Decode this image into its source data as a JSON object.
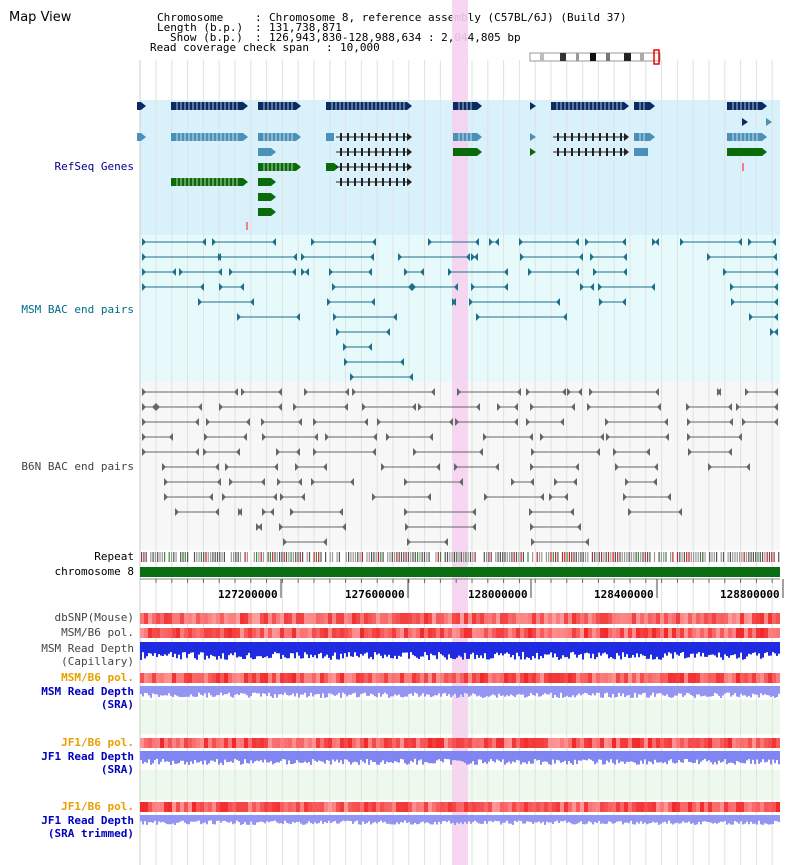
{
  "header": {
    "view_title": "Map View",
    "chromosome_label": "Chromosome",
    "chromosome_value": "Chromosome 8, reference assembly (C57BL/6J) (Build 37)",
    "length_label": "Length (b.p.)",
    "length_value": "131,738,871",
    "show_label": "Show (b.p.)",
    "show_value": "126,943,830-128,988,634 : 2,044,805 bp",
    "coverage_label": "Read coverage check span",
    "coverage_value": "10,000"
  },
  "tracks": {
    "refseq": "RefSeq Genes",
    "msm_bac": "MSM BAC end pairs",
    "b6n_bac": "B6N BAC end pairs",
    "repeat": "Repeat",
    "chromosome": "chromosome 8",
    "dbsnp": "dbSNP(Mouse)",
    "msm_b6_pol": "MSM/B6 pol.",
    "msm_depth_cap_1": "MSM Read Depth",
    "msm_depth_cap_2": "(Capillary)",
    "msm_b6_pol_2": "MSM/B6 pol.",
    "msm_depth_sra_1": "MSM Read Depth",
    "msm_depth_sra_2": "(SRA)",
    "jf1_b6_pol": "JF1/B6 pol.",
    "jf1_depth_sra_1": "JF1 Read Depth",
    "jf1_depth_sra_2": "(SRA)",
    "jf1_b6_pol_2": "JF1/B6 pol.",
    "jf1_depth_trim_1": "JF1 Read Depth",
    "jf1_depth_trim_2": "(SRA trimmed)"
  },
  "axis": {
    "ticks": [
      "127200000",
      "127600000",
      "128000000",
      "128400000",
      "128800000"
    ]
  },
  "colors": {
    "refseq_bg": "#d9f1fb",
    "bac_bg": "#e6fafb",
    "b6n_bg": "#f7f7f7",
    "highlight": "#f5d2f0",
    "gene_navy": "#0b2b63",
    "gene_blue": "#4a90b8",
    "gene_green": "#0a6b0a",
    "bac_msm": "#1f6f8b",
    "bac_b6n": "#666666",
    "chrom_green": "#0b6e12",
    "depth_blue": "#1f2be0",
    "depth_light": "#8c8ff0"
  }
}
